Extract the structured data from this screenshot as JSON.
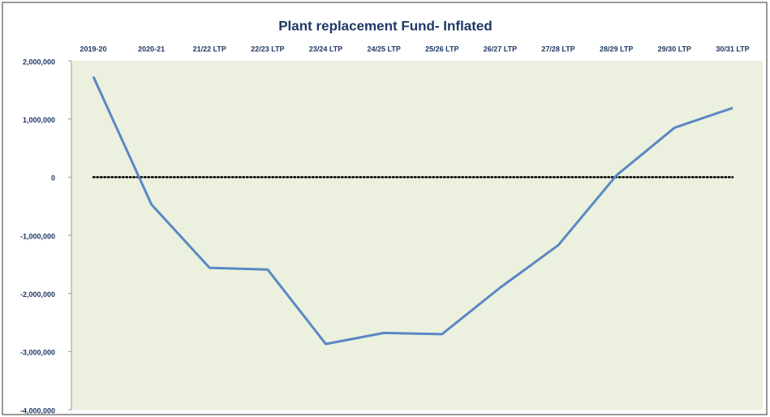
{
  "chart_data": {
    "type": "line",
    "title": "Plant replacement Fund- Inflated",
    "categories": [
      "2019-20",
      "2020-21",
      "21/22 LTP",
      "22/23 LTP",
      "23/24 LTP",
      "24/25 LTP",
      "25/26 LTP",
      "26/27 LTP",
      "27/28 LTP",
      "28/29 LTP",
      "29/30 LTP",
      "30/31 LTP"
    ],
    "series": [
      {
        "color": "#5b87c5",
        "values": [
          1730000,
          -470000,
          -1560000,
          -1590000,
          -2870000,
          -2680000,
          -2700000,
          -1900000,
          -1170000,
          30000,
          850000,
          1190000
        ]
      }
    ],
    "ylim": [
      -4000000,
      2000000
    ],
    "yticks": [
      {
        "value": 2000000,
        "label": "2,000,000"
      },
      {
        "value": 1000000,
        "label": "1,000,000"
      },
      0,
      {
        "value": -1000000,
        "label": "-1,000,000"
      },
      {
        "value": -2000000,
        "label": "-2,000,000"
      },
      {
        "value": -3000000,
        "label": "-3,000,000"
      },
      {
        "value": -4000000,
        "label": "-4,000,000"
      }
    ],
    "zero_line": true
  }
}
